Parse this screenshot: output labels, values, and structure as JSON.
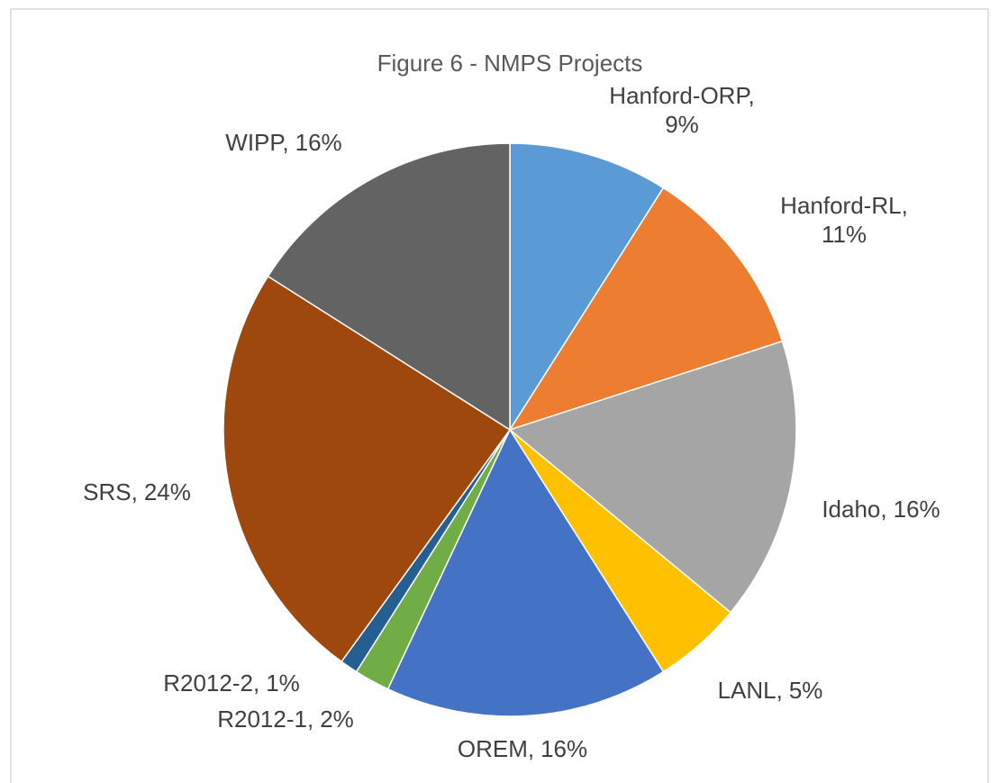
{
  "chart_data": {
    "type": "pie",
    "title": "Figure 6 - NMPS Projects",
    "categories": [
      "Hanford-ORP",
      "Hanford-RL",
      "Idaho",
      "LANL",
      "OREM",
      "R2012-1",
      "R2012-2",
      "SRS",
      "WIPP"
    ],
    "values": [
      9,
      11,
      16,
      5,
      16,
      2,
      1,
      24,
      16
    ],
    "value_labels": [
      "9%",
      "11%",
      "16%",
      "5%",
      "16%",
      "2%",
      "1%",
      "24%",
      "16%"
    ],
    "label_separator": ",",
    "colors": [
      "#5b9bd5",
      "#ed7d31",
      "#a5a5a5",
      "#ffc000",
      "#4472c4",
      "#70ad47",
      "#255e91",
      "#9e480e",
      "#636363"
    ]
  }
}
